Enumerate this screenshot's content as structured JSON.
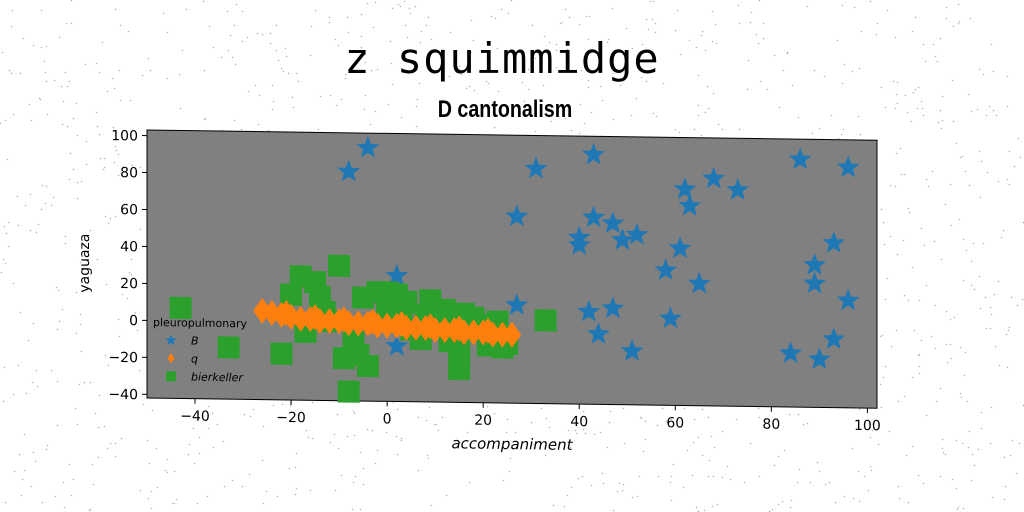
{
  "suptitle": "z squimmidge",
  "chart_data": {
    "type": "scatter",
    "title": "D cantonalism",
    "xlabel": "accompaniment",
    "ylabel": "yaguaza",
    "xlim": [
      -50,
      102
    ],
    "ylim": [
      -42,
      103
    ],
    "xticks": [
      -40,
      -20,
      0,
      20,
      40,
      60,
      80,
      100
    ],
    "yticks": [
      -40,
      -20,
      0,
      20,
      40,
      60,
      80,
      100
    ],
    "background": "#808080",
    "grid": false,
    "legend": {
      "title": "pleuropulmonary",
      "position": "center-left"
    },
    "series": [
      {
        "name": "B",
        "marker": "star",
        "color": "#1f77b4",
        "points": [
          [
            -8,
            82
          ],
          [
            -4,
            95
          ],
          [
            2,
            26
          ],
          [
            2,
            -12
          ],
          [
            -7,
            -8
          ],
          [
            27,
            59
          ],
          [
            27,
            11
          ],
          [
            31,
            85
          ],
          [
            40,
            44
          ],
          [
            40,
            48
          ],
          [
            42,
            8
          ],
          [
            43,
            93
          ],
          [
            43,
            59
          ],
          [
            44,
            -4
          ],
          [
            47,
            56
          ],
          [
            47,
            10
          ],
          [
            49,
            47
          ],
          [
            51,
            -13
          ],
          [
            52,
            50
          ],
          [
            58,
            31
          ],
          [
            59,
            5
          ],
          [
            61,
            43
          ],
          [
            62,
            75
          ],
          [
            63,
            66
          ],
          [
            65,
            24
          ],
          [
            68,
            81
          ],
          [
            73,
            75
          ],
          [
            84,
            -13
          ],
          [
            86,
            92
          ],
          [
            89,
            25
          ],
          [
            89,
            35
          ],
          [
            90,
            -16
          ],
          [
            93,
            -5
          ],
          [
            93,
            47
          ],
          [
            96,
            16
          ],
          [
            96,
            88
          ]
        ]
      },
      {
        "name": "q",
        "marker": "diamond",
        "color": "#ff7f0e",
        "points": [
          [
            -26,
            6
          ],
          [
            -24,
            5
          ],
          [
            -22,
            4
          ],
          [
            -20,
            3
          ],
          [
            -18,
            2
          ],
          [
            -16,
            2
          ],
          [
            -14,
            1
          ],
          [
            -12,
            1
          ],
          [
            -10,
            1
          ],
          [
            -8,
            0
          ],
          [
            -6,
            0
          ],
          [
            -4,
            0
          ],
          [
            -2,
            -1
          ],
          [
            0,
            -1
          ],
          [
            2,
            -1
          ],
          [
            4,
            -2
          ],
          [
            6,
            -2
          ],
          [
            8,
            -2
          ],
          [
            10,
            -3
          ],
          [
            12,
            -3
          ],
          [
            14,
            -3
          ],
          [
            16,
            -4
          ],
          [
            18,
            -4
          ],
          [
            20,
            -4
          ],
          [
            22,
            -5
          ],
          [
            24,
            -5
          ],
          [
            26,
            -5
          ],
          [
            -21,
            5
          ],
          [
            -15,
            3
          ],
          [
            -9,
            2
          ],
          [
            -3,
            1
          ],
          [
            3,
            0
          ],
          [
            9,
            -1
          ],
          [
            15,
            -2
          ],
          [
            21,
            -3
          ]
        ]
      },
      {
        "name": "bierkeller",
        "marker": "square",
        "color": "#2ca02c",
        "points": [
          [
            -43,
            7
          ],
          [
            -33,
            -14
          ],
          [
            -20,
            15
          ],
          [
            -18,
            25
          ],
          [
            -15,
            22
          ],
          [
            -14,
            14
          ],
          [
            -13,
            6
          ],
          [
            -12,
            1
          ],
          [
            -10,
            31
          ],
          [
            -9,
            -19
          ],
          [
            -8,
            -37
          ],
          [
            -7,
            -10
          ],
          [
            -6,
            -17
          ],
          [
            -4,
            -23
          ],
          [
            -5,
            14
          ],
          [
            -2,
            17
          ],
          [
            0,
            17
          ],
          [
            0,
            10
          ],
          [
            1,
            4
          ],
          [
            2,
            16
          ],
          [
            3,
            1
          ],
          [
            4,
            12
          ],
          [
            5,
            -3
          ],
          [
            7,
            -8
          ],
          [
            8,
            5
          ],
          [
            9,
            13
          ],
          [
            10,
            0
          ],
          [
            11,
            6
          ],
          [
            12,
            8
          ],
          [
            13,
            -9
          ],
          [
            14,
            2
          ],
          [
            15,
            -14
          ],
          [
            15,
            -24
          ],
          [
            16,
            6
          ],
          [
            18,
            4
          ],
          [
            20,
            0
          ],
          [
            21,
            -11
          ],
          [
            23,
            2
          ],
          [
            24,
            -12
          ],
          [
            25,
            -10
          ],
          [
            33,
            3
          ],
          [
            -22,
            -17
          ],
          [
            -17,
            -5
          ]
        ]
      }
    ]
  }
}
